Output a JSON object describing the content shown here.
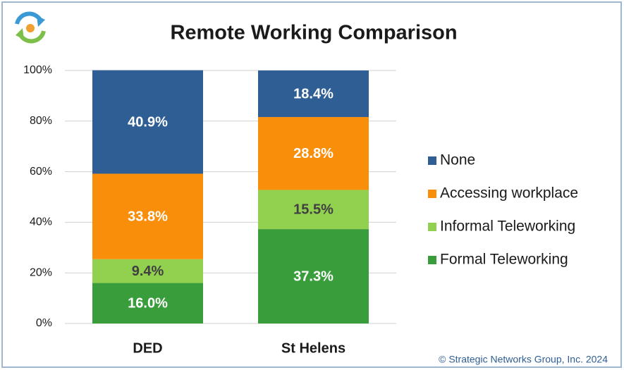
{
  "chart_data": {
    "type": "stacked_bar",
    "title": "Remote Working Comparison",
    "credit": "© Strategic Networks Group, Inc. 2024",
    "categories": [
      "DED",
      "St Helens"
    ],
    "series": [
      {
        "name": "Formal Teleworking",
        "color": "#3a9d3c",
        "label_color": "#ffffff",
        "values": [
          16.0,
          37.3
        ],
        "value_labels": [
          "16.0%",
          "37.3%"
        ]
      },
      {
        "name": "Informal Teleworking",
        "color": "#92d050",
        "label_color": "#404040",
        "values": [
          9.4,
          15.5
        ],
        "value_labels": [
          "9.4%",
          "15.5%"
        ]
      },
      {
        "name": "Accessing workplace",
        "color": "#f98e0b",
        "label_color": "#ffffff",
        "values": [
          33.8,
          28.8
        ],
        "value_labels": [
          "33.8%",
          "28.8%"
        ]
      },
      {
        "name": "None",
        "color": "#2e5e94",
        "label_color": "#ffffff",
        "values": [
          40.9,
          18.4
        ],
        "value_labels": [
          "40.9%",
          "18.4%"
        ]
      }
    ],
    "ylim": [
      0,
      100
    ],
    "yticks": [
      {
        "value": 0,
        "label": "0%"
      },
      {
        "value": 20,
        "label": "20%"
      },
      {
        "value": 40,
        "label": "40%"
      },
      {
        "value": 60,
        "label": "60%"
      },
      {
        "value": 80,
        "label": "80%"
      },
      {
        "value": 100,
        "label": "100%"
      }
    ],
    "grid": true,
    "legend": "right"
  }
}
